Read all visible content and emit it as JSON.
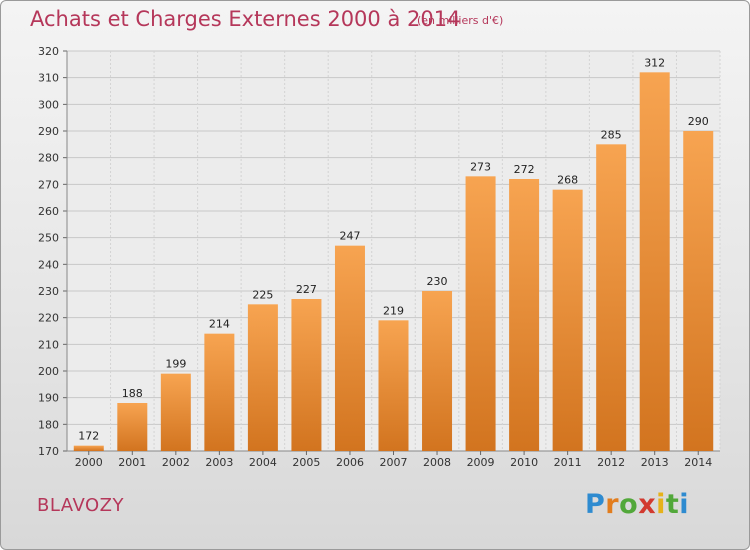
{
  "title": "Achats et Charges Externes 2000 à 2014",
  "subtitle": "(en milliers d'€)",
  "location": "BLAVOZY",
  "logo": {
    "letters": [
      "P",
      "r",
      "o",
      "x",
      "i",
      "t",
      "i"
    ],
    "colors": [
      "#2e8bd0",
      "#e27d1e",
      "#52a83a",
      "#d23a2f",
      "#e6b21a",
      "#52a83a",
      "#2e8bd0"
    ]
  },
  "colors": {
    "bar_light": "#f7a451",
    "bar_dark": "#d2741f",
    "title": "#b5375a"
  },
  "chart_data": {
    "type": "bar",
    "categories": [
      "2000",
      "2001",
      "2002",
      "2003",
      "2004",
      "2005",
      "2006",
      "2007",
      "2008",
      "2009",
      "2010",
      "2011",
      "2012",
      "2013",
      "2014"
    ],
    "values": [
      172,
      188,
      199,
      214,
      225,
      227,
      247,
      219,
      230,
      273,
      272,
      268,
      285,
      312,
      290
    ],
    "ylim": [
      170,
      320
    ],
    "yticks": [
      170,
      180,
      190,
      200,
      210,
      220,
      230,
      240,
      250,
      260,
      270,
      280,
      290,
      300,
      310,
      320
    ],
    "grid": true
  }
}
